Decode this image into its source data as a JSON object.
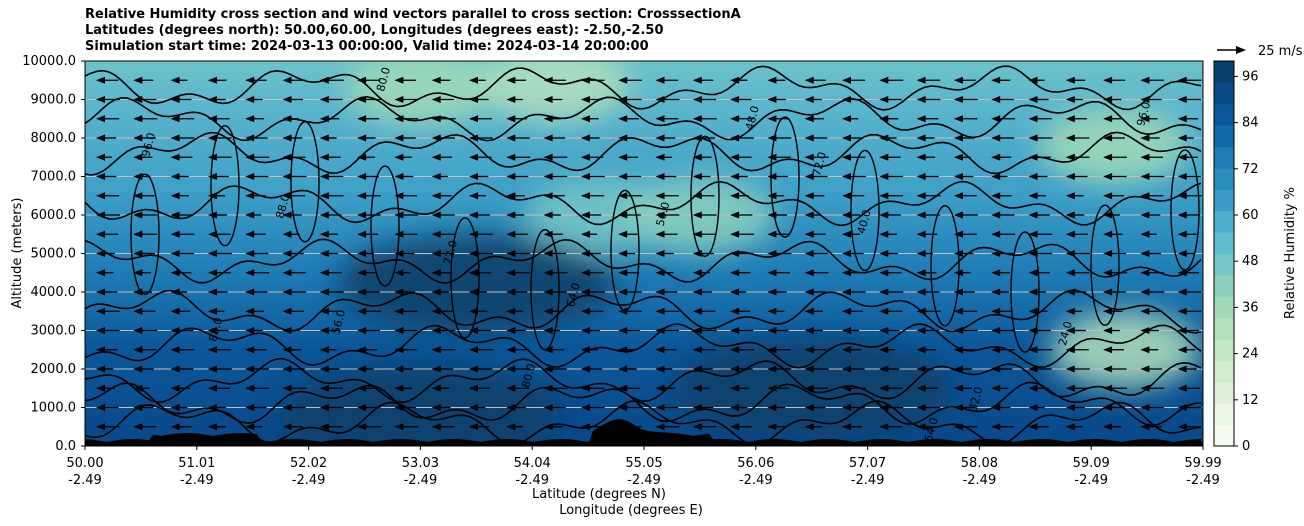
{
  "chart_data": {
    "type": "heatmap",
    "title_lines": [
      "Relative Humidity cross section and wind vectors parallel to cross section: CrosssectionA",
      "Latitudes (degrees north): 50.00,60.00, Longitudes (degrees east): -2.50,-2.50",
      "Simulation start time: 2024-03-13 00:00:00, Valid time: 2024-03-14 20:00:00"
    ],
    "xlabel": "Latitude (degrees N)",
    "xlabel2": "Longitude (degrees E)",
    "ylabel": "Altitude (meters)",
    "x_ticks": [
      {
        "lat": "50.00",
        "lon": "-2.49"
      },
      {
        "lat": "51.01",
        "lon": "-2.49"
      },
      {
        "lat": "52.02",
        "lon": "-2.49"
      },
      {
        "lat": "53.03",
        "lon": "-2.49"
      },
      {
        "lat": "54.04",
        "lon": "-2.49"
      },
      {
        "lat": "55.05",
        "lon": "-2.49"
      },
      {
        "lat": "56.06",
        "lon": "-2.49"
      },
      {
        "lat": "57.07",
        "lon": "-2.49"
      },
      {
        "lat": "58.08",
        "lon": "-2.49"
      },
      {
        "lat": "59.09",
        "lon": "-2.49"
      },
      {
        "lat": "59.99",
        "lon": "-2.49"
      }
    ],
    "y_ticks": [
      "0.0",
      "1000.0",
      "2000.0",
      "3000.0",
      "4000.0",
      "5000.0",
      "6000.0",
      "7000.0",
      "8000.0",
      "9000.0",
      "10000.0"
    ],
    "ylim": [
      0,
      10000
    ],
    "colorbar": {
      "label": "Relative Humidity %",
      "ticks": [
        "0",
        "12",
        "24",
        "36",
        "48",
        "60",
        "72",
        "84",
        "96"
      ],
      "range": [
        0,
        100
      ],
      "colors": [
        "#f7fcf0",
        "#eaf7e5",
        "#dff2d9",
        "#d2edcb",
        "#c4e8c2",
        "#b3e1bb",
        "#a0dab7",
        "#8bd1be",
        "#76c8c7",
        "#61bdcb",
        "#4eafd0",
        "#3c9ec8",
        "#2c8dbf",
        "#1e7cb5",
        "#1269aa",
        "#0b5799",
        "#084889",
        "#08406b"
      ]
    },
    "wind_key": "25 m/s",
    "contour_labels": [
      "96.0",
      "88.0",
      "80.0",
      "72.0",
      "64.0",
      "56.0",
      "48.0",
      "40.0",
      "32.0",
      "24.0"
    ],
    "dry_regions": [
      {
        "x_frac": 0.3,
        "altitude": 9300,
        "rh": 35
      },
      {
        "x_frac": 0.42,
        "altitude": 9400,
        "rh": 30
      },
      {
        "x_frac": 0.93,
        "altitude": 2500,
        "rh": 30
      },
      {
        "x_frac": 0.92,
        "altitude": 7800,
        "rh": 35
      },
      {
        "x_frac": 0.46,
        "altitude": 6000,
        "rh": 45
      },
      {
        "x_frac": 0.55,
        "altitude": 6000,
        "rh": 40
      }
    ],
    "moist_regions": [
      {
        "x_frac": 0.35,
        "altitude": 4200,
        "rh": 96
      },
      {
        "x_frac": 0.65,
        "altitude": 1500,
        "rh": 96
      },
      {
        "x_frac": 0.3,
        "altitude": 800,
        "rh": 96
      }
    ]
  }
}
